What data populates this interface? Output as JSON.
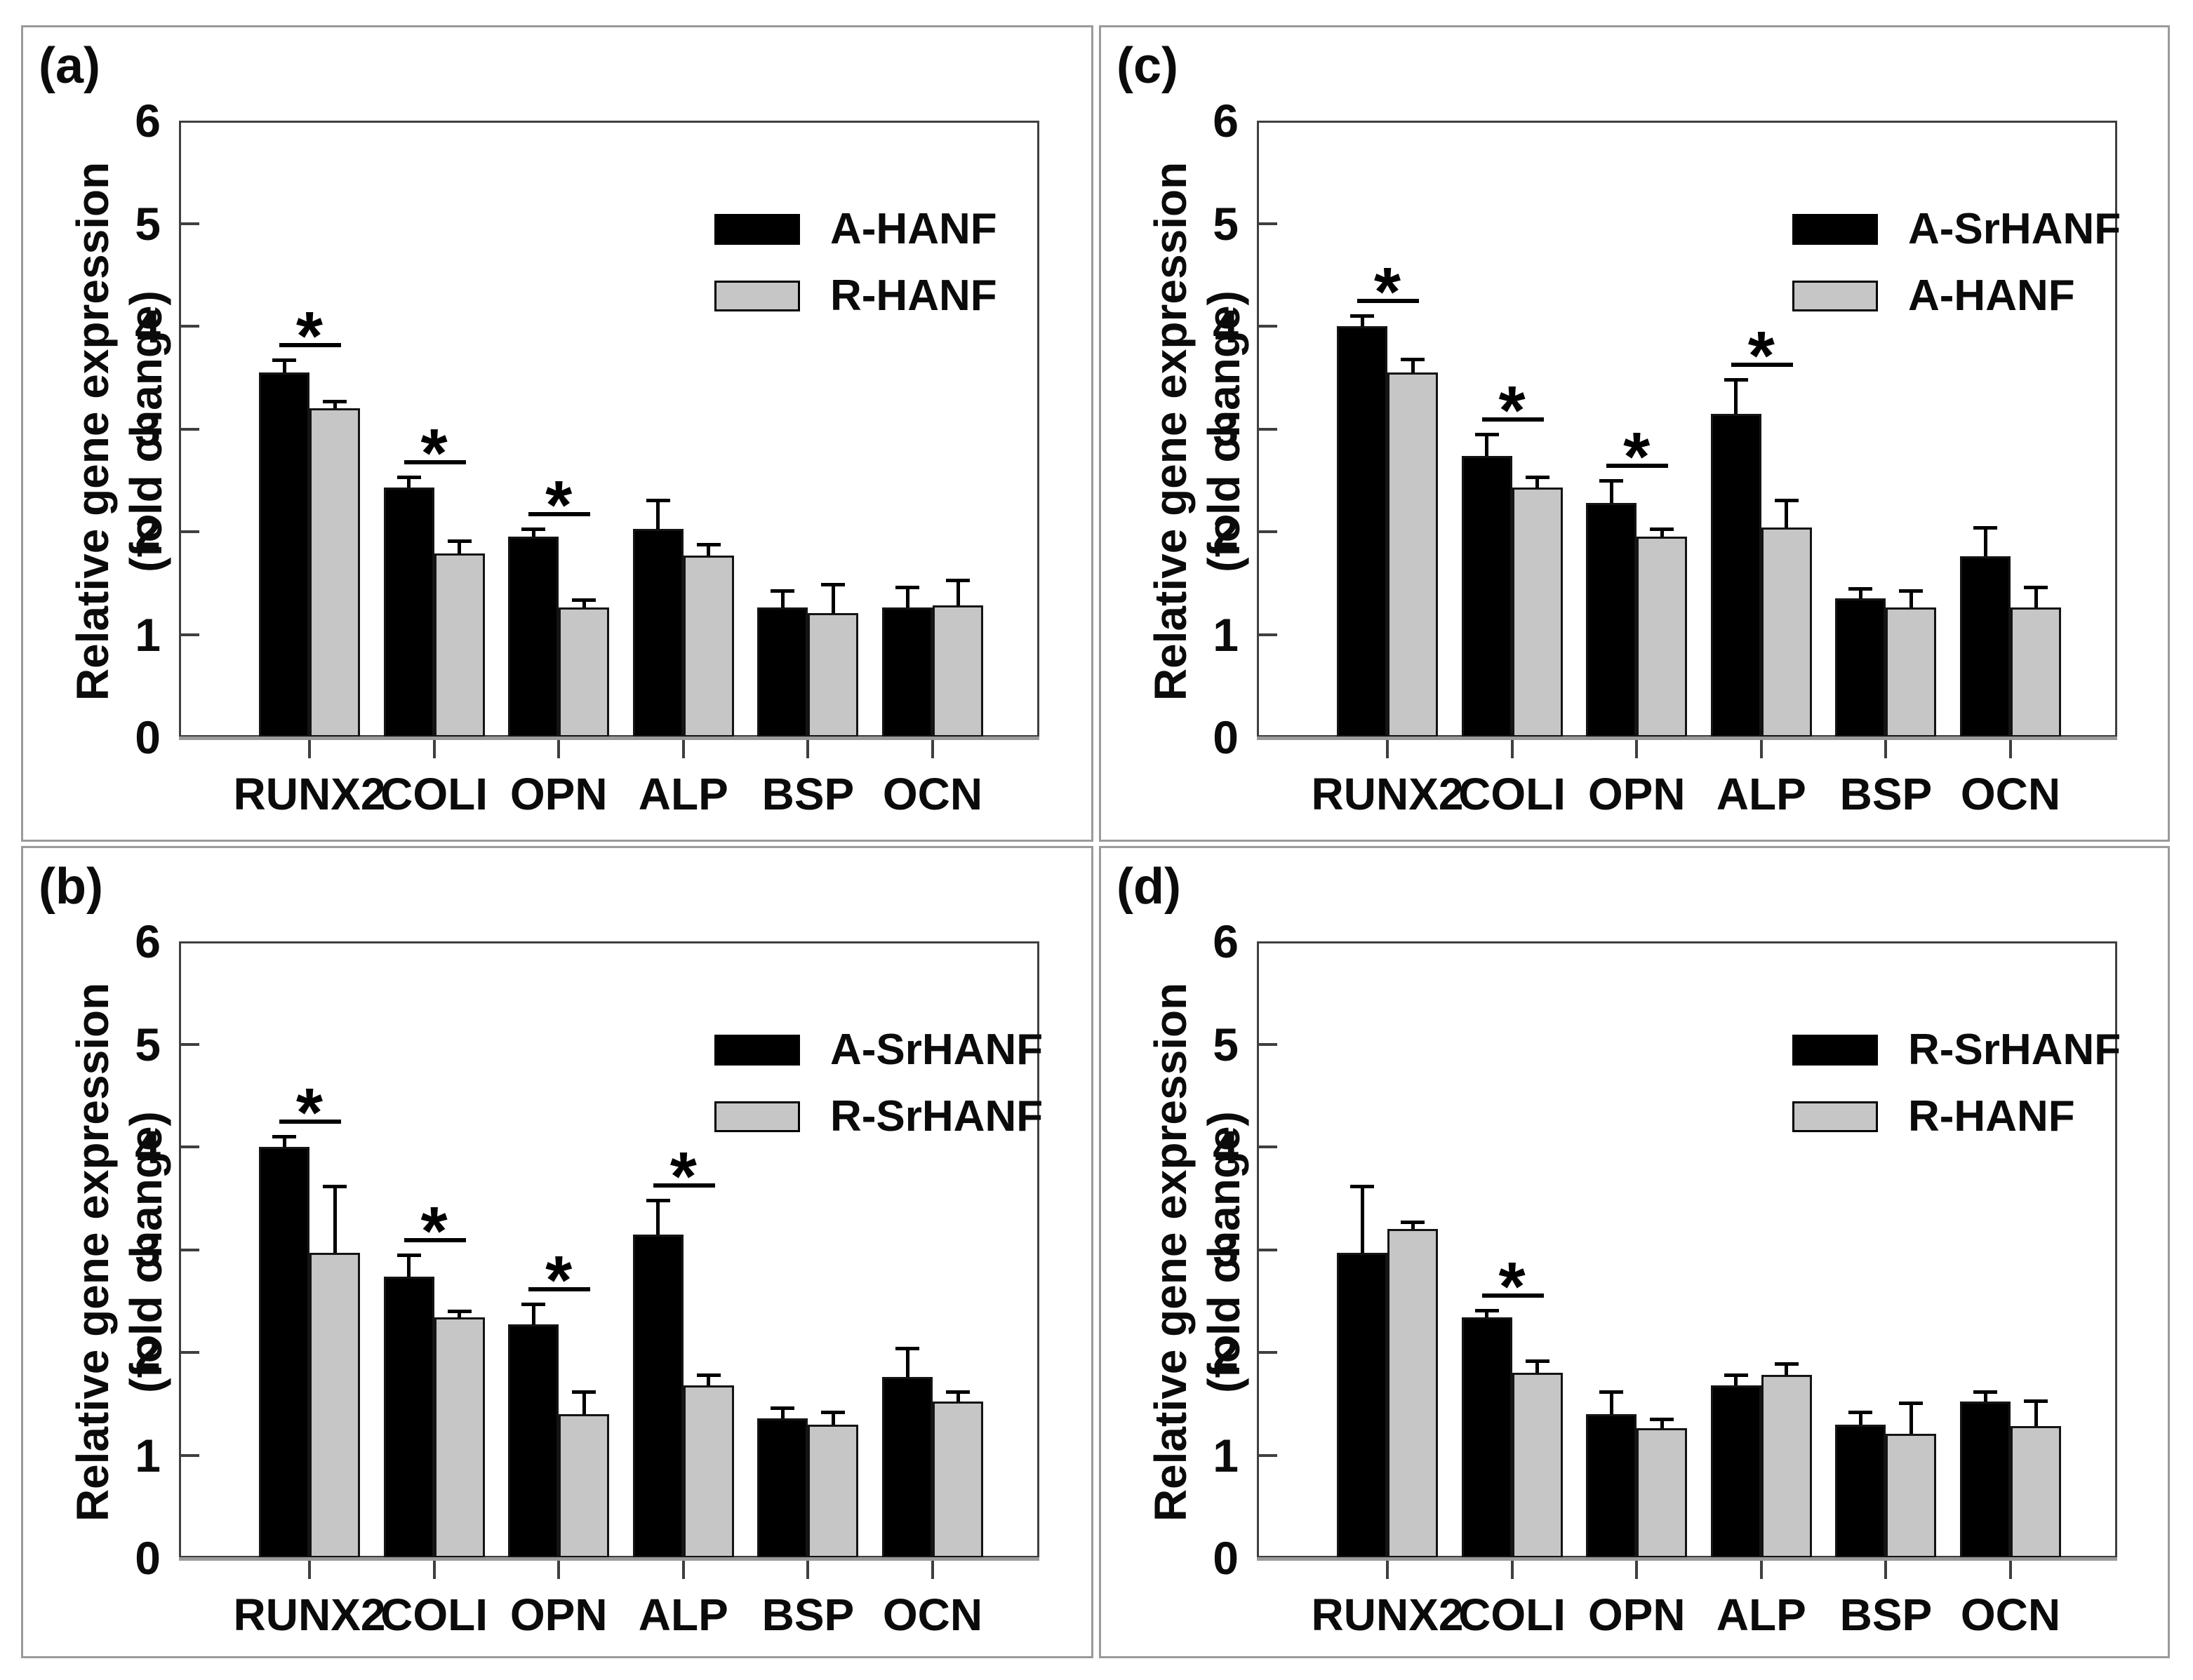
{
  "figure": {
    "ylabel_line1": "Relative gene expression",
    "ylabel_line2": "(fold change)",
    "colors": {
      "series_black": "#000000",
      "series_gray": "#c6c6c6",
      "bar_border": "#141414",
      "plot_frame": "#3f3f3f",
      "axis_baseline": "#9a9a9a",
      "panel_border": "#9a9a9a",
      "text": "#0b0b0b"
    },
    "significance_symbol": "*"
  },
  "chart_data": [
    {
      "type": "bar",
      "panel": "(a)",
      "ylabel": "Relative gene expression (fold change)",
      "ylim": [
        0,
        6
      ],
      "yticks": [
        0,
        1,
        2,
        3,
        4,
        5,
        6
      ],
      "grid": false,
      "legend_position": "top-right",
      "categories": [
        "RUNX2",
        "COLI",
        "OPN",
        "ALP",
        "BSP",
        "OCN"
      ],
      "series": [
        {
          "name": "A-HANF",
          "color": "#000000",
          "values": [
            3.55,
            2.43,
            1.95,
            2.03,
            1.26,
            1.26
          ],
          "errors": [
            0.12,
            0.1,
            0.08,
            0.28,
            0.17,
            0.2
          ]
        },
        {
          "name": "R-HANF",
          "color": "#c6c6c6",
          "values": [
            3.2,
            1.79,
            1.26,
            1.77,
            1.21,
            1.28
          ],
          "errors": [
            0.07,
            0.12,
            0.08,
            0.11,
            0.28,
            0.25
          ]
        }
      ],
      "significant_categories": [
        "RUNX2",
        "COLI",
        "OPN"
      ]
    },
    {
      "type": "bar",
      "panel": "(b)",
      "ylabel": "Relative gene expression (fold change)",
      "ylim": [
        0,
        6
      ],
      "yticks": [
        0,
        1,
        2,
        3,
        4,
        5,
        6
      ],
      "grid": false,
      "legend_position": "top-right",
      "categories": [
        "RUNX2",
        "COLI",
        "OPN",
        "ALP",
        "BSP",
        "OCN"
      ],
      "series": [
        {
          "name": "A-SrHANF",
          "color": "#000000",
          "values": [
            4.0,
            2.74,
            2.27,
            3.15,
            1.36,
            1.76
          ],
          "errors": [
            0.1,
            0.21,
            0.2,
            0.33,
            0.1,
            0.28
          ]
        },
        {
          "name": "R-SrHANF",
          "color": "#c6c6c6",
          "values": [
            2.97,
            2.34,
            1.4,
            1.68,
            1.3,
            1.52
          ],
          "errors": [
            0.65,
            0.06,
            0.22,
            0.1,
            0.12,
            0.1
          ]
        }
      ],
      "significant_categories": [
        "RUNX2",
        "COLI",
        "OPN",
        "ALP"
      ]
    },
    {
      "type": "bar",
      "panel": "(c)",
      "ylabel": "Relative gene expression (fold change)",
      "ylim": [
        0,
        6
      ],
      "yticks": [
        0,
        1,
        2,
        3,
        4,
        5,
        6
      ],
      "grid": false,
      "legend_position": "top-right",
      "categories": [
        "RUNX2",
        "COLI",
        "OPN",
        "ALP",
        "BSP",
        "OCN"
      ],
      "series": [
        {
          "name": "A-SrHANF",
          "color": "#000000",
          "values": [
            4.0,
            2.74,
            2.28,
            3.15,
            1.35,
            1.76
          ],
          "errors": [
            0.1,
            0.21,
            0.22,
            0.33,
            0.1,
            0.28
          ]
        },
        {
          "name": "A-HANF",
          "color": "#c6c6c6",
          "values": [
            3.55,
            2.43,
            1.95,
            2.04,
            1.26,
            1.26
          ],
          "errors": [
            0.13,
            0.1,
            0.08,
            0.27,
            0.17,
            0.2
          ]
        }
      ],
      "significant_categories": [
        "RUNX2",
        "COLI",
        "OPN",
        "ALP"
      ]
    },
    {
      "type": "bar",
      "panel": "(d)",
      "ylabel": "Relative gene expression (fold change)",
      "ylim": [
        0,
        6
      ],
      "yticks": [
        0,
        1,
        2,
        3,
        4,
        5,
        6
      ],
      "grid": false,
      "legend_position": "top-right",
      "categories": [
        "RUNX2",
        "COLI",
        "OPN",
        "ALP",
        "BSP",
        "OCN"
      ],
      "series": [
        {
          "name": "R-SrHANF",
          "color": "#000000",
          "values": [
            2.97,
            2.34,
            1.4,
            1.68,
            1.3,
            1.52
          ],
          "errors": [
            0.65,
            0.07,
            0.22,
            0.1,
            0.12,
            0.1
          ]
        },
        {
          "name": "R-HANF",
          "color": "#c6c6c6",
          "values": [
            3.2,
            1.8,
            1.26,
            1.78,
            1.21,
            1.28
          ],
          "errors": [
            0.07,
            0.12,
            0.09,
            0.11,
            0.3,
            0.25
          ]
        }
      ],
      "significant_categories": [
        "COLI"
      ]
    }
  ]
}
